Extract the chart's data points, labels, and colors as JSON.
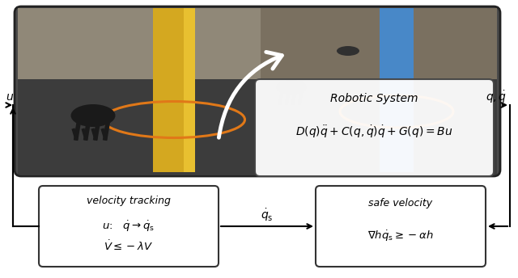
{
  "bg_color": "#ffffff",
  "photo_bg": "#4a4a4a",
  "photo_floor": "#3c3c3c",
  "photo_wall_color": "#7a7060",
  "photo_wall_color2": "#908878",
  "yellow_col_color": "#d4a820",
  "yellow_col_light": "#e8c030",
  "blue_col_color": "#4888c8",
  "orange_circle_color": "#e07818",
  "robotic_title": "Robotic System",
  "robotic_eq": "$D(q)\\ddot{q} + C(q,\\dot{q})\\dot{q} + G(q) = Bu$",
  "velocity_title": "velocity tracking",
  "velocity_eq1": "$u\\colon\\quad \\dot{q} \\to \\dot{q}_{\\mathrm{s}}$",
  "velocity_eq2": "$\\dot{V} \\leq -\\lambda V$",
  "safe_title": "safe velocity",
  "safe_eq": "$\\nabla h\\dot{q}_{\\mathrm{s}} \\geq -\\alpha h$",
  "label_u": "$u$",
  "label_qdot": "$q, \\dot{q}$",
  "label_qsdot": "$\\dot{q}_{\\mathrm{s}}$"
}
